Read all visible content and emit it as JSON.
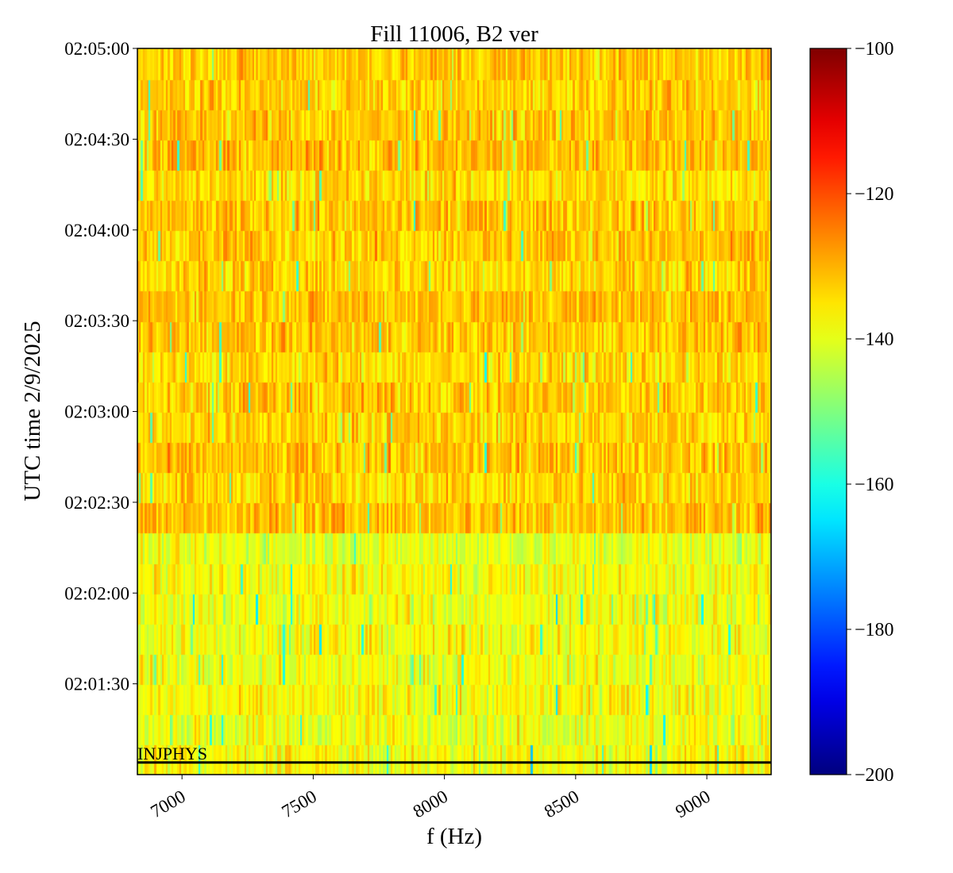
{
  "chart_data": {
    "type": "heatmap",
    "title": "Fill 11006, B2 ver",
    "xlabel": "f (Hz)",
    "ylabel": "UTC time 2/9/2025",
    "xlim": [
      6830,
      9245
    ],
    "xticks": [
      7000,
      7500,
      8000,
      8500,
      9000
    ],
    "xtick_labels": [
      "7000",
      "7500",
      "8000",
      "8500",
      "9000"
    ],
    "ylim": [
      "02:01:00",
      "02:05:00"
    ],
    "yticks": [
      "02:01:30",
      "02:02:00",
      "02:02:30",
      "02:03:00",
      "02:03:30",
      "02:04:00",
      "02:04:30",
      "02:05:00"
    ],
    "time_bin_seconds": 10,
    "row_start_times": [
      "02:01:00",
      "02:01:10",
      "02:01:20",
      "02:01:30",
      "02:01:40",
      "02:01:50",
      "02:02:00",
      "02:02:10",
      "02:02:20",
      "02:02:30",
      "02:02:40",
      "02:02:50",
      "02:03:00",
      "02:03:10",
      "02:03:20",
      "02:03:30",
      "02:03:40",
      "02:03:50",
      "02:04:00",
      "02:04:10",
      "02:04:20",
      "02:04:30",
      "02:04:40",
      "02:04:50"
    ],
    "row_mean_db": [
      -138,
      -139,
      -138,
      -139,
      -138,
      -139,
      -138,
      -140,
      -131,
      -133,
      -132,
      -133,
      -132,
      -134,
      -132,
      -131,
      -133,
      -132,
      -132,
      -134,
      -131,
      -132,
      -133,
      -132
    ],
    "colormap": "jet",
    "colorbar": {
      "range": [
        -200,
        -100
      ],
      "ticks": [
        -100,
        -120,
        -140,
        -160,
        -180,
        -200
      ],
      "tick_labels": [
        "−100",
        "−120",
        "−140",
        "−160",
        "−180",
        "−200"
      ]
    },
    "annotations": [
      {
        "text": "INJPHYS",
        "time": "02:01:04",
        "type": "horizontal-line",
        "color": "#000000"
      }
    ],
    "grid": false
  }
}
